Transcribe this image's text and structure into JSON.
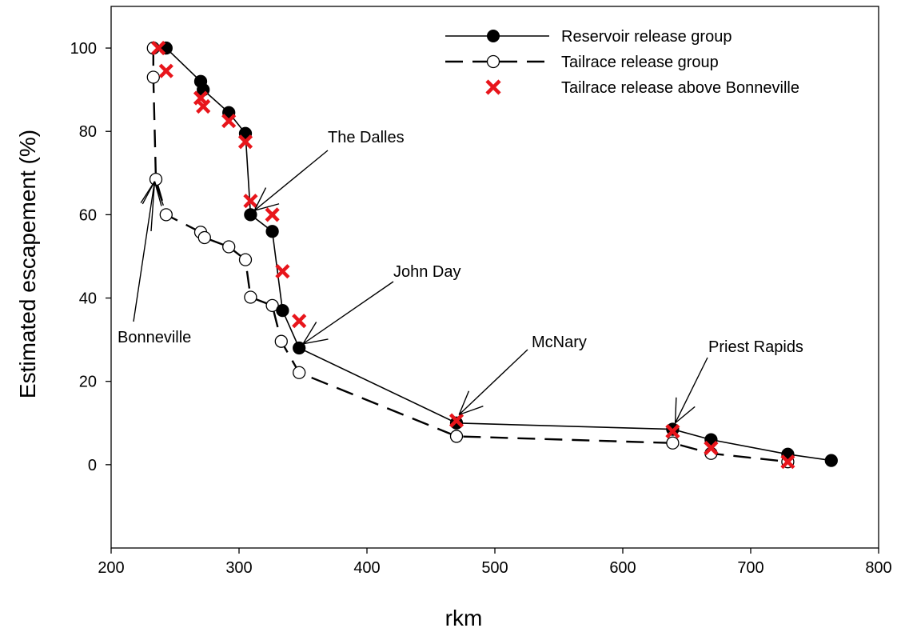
{
  "chart_data": {
    "type": "line",
    "xlabel": "rkm",
    "ylabel": "Estimated escapement (%)",
    "xlim": [
      200,
      800
    ],
    "ylim": [
      -20,
      110
    ],
    "x_ticks": [
      200,
      300,
      400,
      500,
      600,
      700,
      800
    ],
    "y_ticks": [
      0,
      20,
      40,
      60,
      80,
      100
    ],
    "grid": false,
    "legend_position": "top-right",
    "series": [
      {
        "name": "Reservoir release group",
        "marker": "filled-circle",
        "line": "solid",
        "color": "#000000",
        "points": [
          [
            243,
            100
          ],
          [
            270,
            92
          ],
          [
            272,
            90
          ],
          [
            292,
            84.5
          ],
          [
            305,
            79.5
          ],
          [
            309,
            60
          ],
          [
            326,
            56
          ],
          [
            334,
            37
          ],
          [
            347,
            28
          ],
          [
            470,
            10
          ],
          [
            639,
            8.5
          ],
          [
            669,
            6
          ],
          [
            729,
            2.5
          ],
          [
            763,
            1
          ]
        ]
      },
      {
        "name": "Tailrace release group",
        "marker": "open-circle",
        "line": "dashed",
        "color": "#000000",
        "points": [
          [
            233,
            100
          ],
          [
            233,
            93
          ],
          [
            235,
            68.5
          ],
          [
            243,
            60
          ],
          [
            270,
            55.8
          ],
          [
            273,
            54.5
          ],
          [
            292,
            52.3
          ],
          [
            305,
            49.2
          ],
          [
            309,
            40.2
          ],
          [
            326,
            38.2
          ],
          [
            333,
            29.6
          ],
          [
            347,
            22.1
          ],
          [
            470,
            6.8
          ],
          [
            639,
            5.2
          ],
          [
            669,
            2.7
          ],
          [
            729,
            0.7
          ]
        ]
      },
      {
        "name": "Tailrace release above Bonneville",
        "marker": "x",
        "line": "none",
        "color": "#e8151b",
        "points": [
          [
            237,
            100
          ],
          [
            243,
            94.5
          ],
          [
            270,
            88
          ],
          [
            272,
            86
          ],
          [
            292,
            82.5
          ],
          [
            305,
            77.5
          ],
          [
            309,
            63.3
          ],
          [
            326,
            60
          ],
          [
            334,
            46.4
          ],
          [
            347,
            34.5
          ],
          [
            470,
            10.6
          ],
          [
            639,
            8
          ],
          [
            669,
            4
          ],
          [
            729,
            0.7
          ]
        ]
      }
    ],
    "annotations": [
      {
        "text": "Bonneville",
        "points_to": [
          234,
          68
        ]
      },
      {
        "text": "The Dalles",
        "points_to": [
          312,
          61
        ]
      },
      {
        "text": "John Day",
        "points_to": [
          350,
          29
        ]
      },
      {
        "text": "McNary",
        "points_to": [
          472,
          12
        ]
      },
      {
        "text": "Priest Rapids",
        "points_to": [
          641,
          10
        ]
      }
    ]
  }
}
